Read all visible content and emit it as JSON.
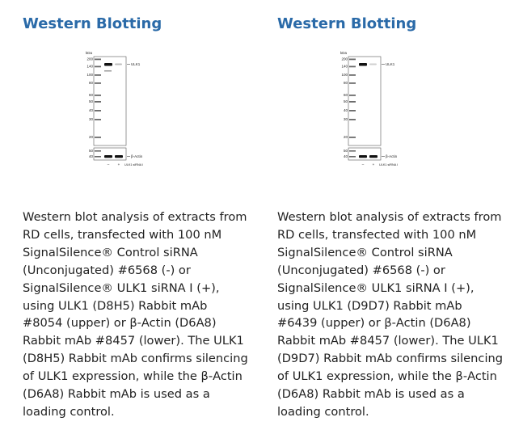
{
  "panels": [
    {
      "title": "Western Blotting",
      "figure": {
        "kda_label": "kDa",
        "markers": [
          "200",
          "140",
          "100",
          "80",
          "60",
          "50",
          "40",
          "30",
          "20"
        ],
        "lower_markers": [
          "50",
          "40"
        ],
        "target_label": "ULK1",
        "loading_label": "β-Actin",
        "lanes": [
          "–",
          "+"
        ],
        "condition_label": "ULK1 siRNA I"
      },
      "caption_lines": [
        "Western blot analysis of extracts from",
        "RD cells, transfected with 100 nM",
        "SignalSilence® Control siRNA",
        "(Unconjugated) #6568 (-) or",
        "SignalSilence® ULK1 siRNA I (+),",
        "using ULK1 (D8H5) Rabbit mAb",
        "#8054 (upper) or β-Actin (D6A8)",
        "Rabbit mAb #8457 (lower). The ULK1",
        "(D8H5) Rabbit mAb confirms silencing",
        "of ULK1 expression, while the β-Actin",
        "(D6A8) Rabbit mAb is used as a",
        "loading control."
      ]
    },
    {
      "title": "Western Blotting",
      "figure": {
        "kda_label": "kDa",
        "markers": [
          "200",
          "140",
          "100",
          "80",
          "60",
          "50",
          "40",
          "30",
          "20"
        ],
        "lower_markers": [
          "50",
          "40"
        ],
        "target_label": "ULK1",
        "loading_label": "β-Actin",
        "lanes": [
          "–",
          "+"
        ],
        "condition_label": "ULK1 siRNA I"
      },
      "caption_lines": [
        "Western blot analysis of extracts from",
        "RD cells, transfected with 100 nM",
        "SignalSilence® Control siRNA",
        "(Unconjugated) #6568 (-) or",
        "SignalSilence® ULK1 siRNA I (+),",
        "using ULK1 (D9D7) Rabbit mAb",
        "#6439 (upper) or β-Actin (D6A8)",
        "Rabbit mAb #8457 (lower). The ULK1",
        "(D9D7) Rabbit mAb confirms silencing",
        "of ULK1 expression, while the β-Actin",
        "(D6A8) Rabbit mAb is used as a",
        "loading control."
      ]
    }
  ]
}
